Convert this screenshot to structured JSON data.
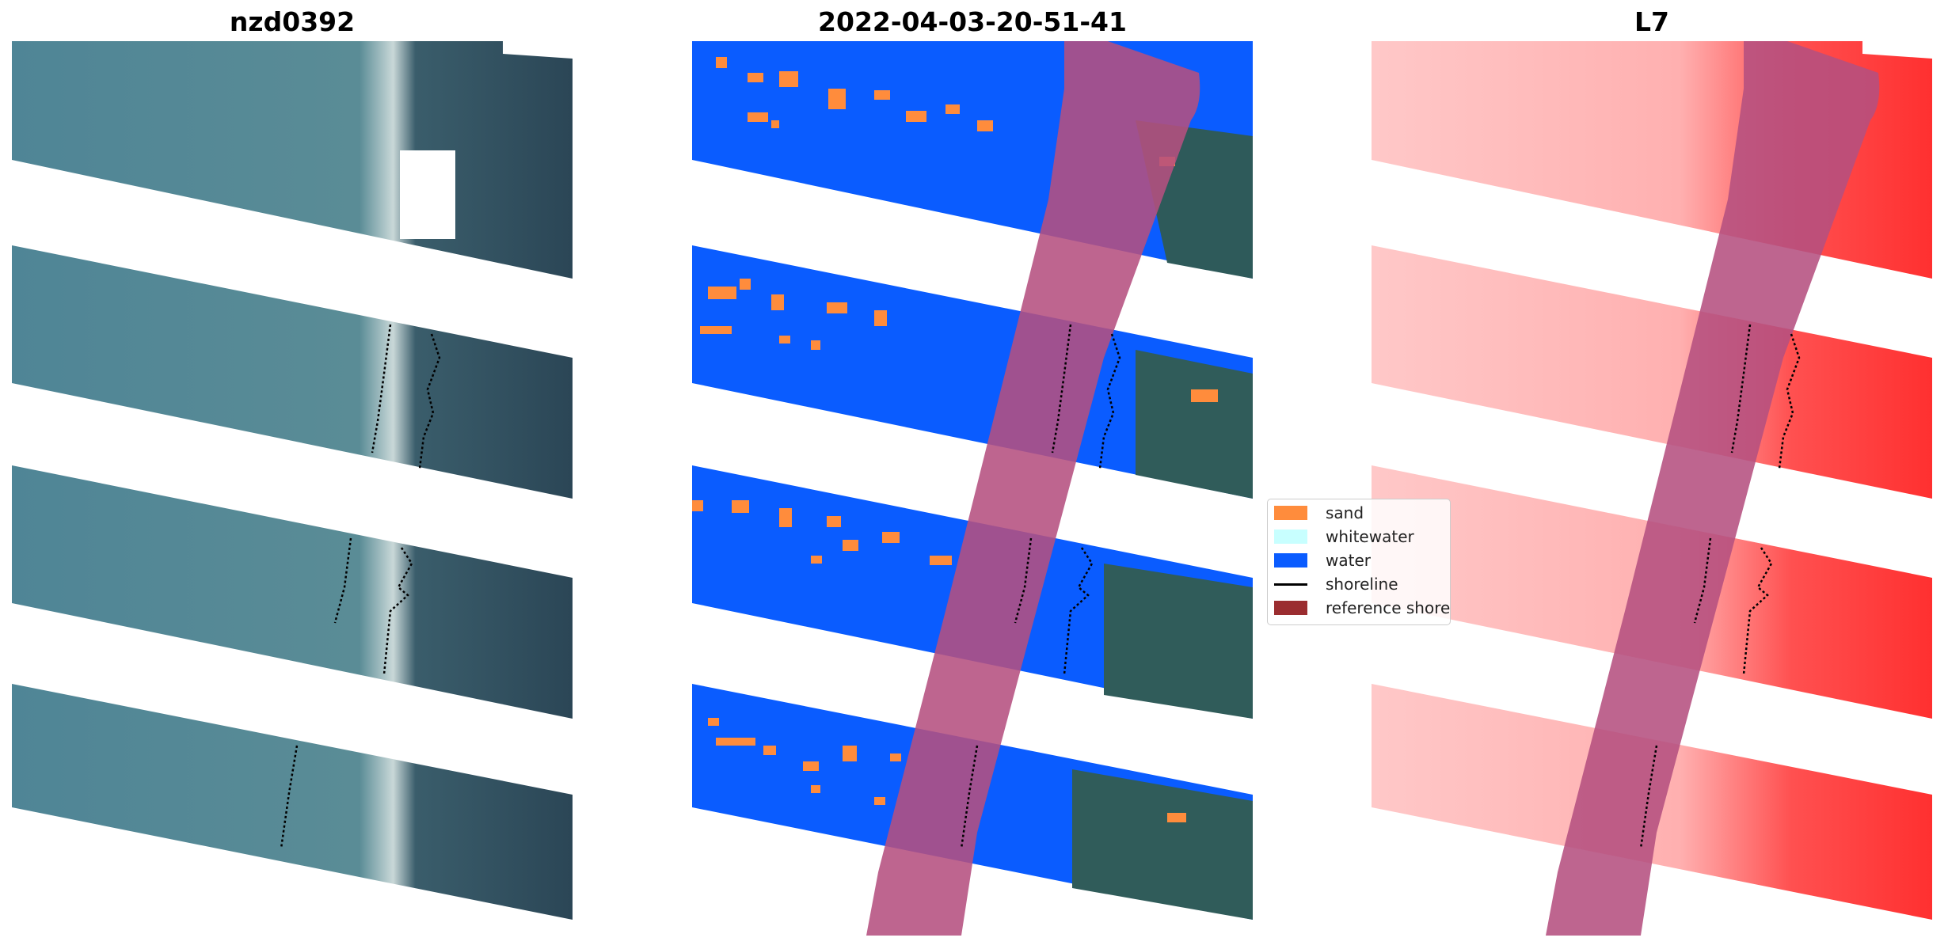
{
  "panels": [
    {
      "title": "nzd0392"
    },
    {
      "title": "2022-04-03-20-51-41"
    },
    {
      "title": "L7"
    }
  ],
  "legend": {
    "items": [
      {
        "label": "sand",
        "color": "#ff8c3c",
        "kind": "patch"
      },
      {
        "label": "whitewater",
        "color": "#c8ffff",
        "kind": "patch"
      },
      {
        "label": "water",
        "color": "#0a5cff",
        "kind": "patch"
      },
      {
        "label": "shoreline",
        "color": "#000000",
        "kind": "line"
      },
      {
        "label": "reference shoreline buffer",
        "color": "#9b2d30",
        "kind": "patch"
      }
    ]
  },
  "colors": {
    "rgb_water_light": "#4d8296",
    "rgb_water_dark": "#2c4a5c",
    "classified_water": "#0a5cff",
    "sand": "#ff8c3c",
    "buffer_overlay": "#b5507f",
    "index_red": "#ff3b3b"
  }
}
